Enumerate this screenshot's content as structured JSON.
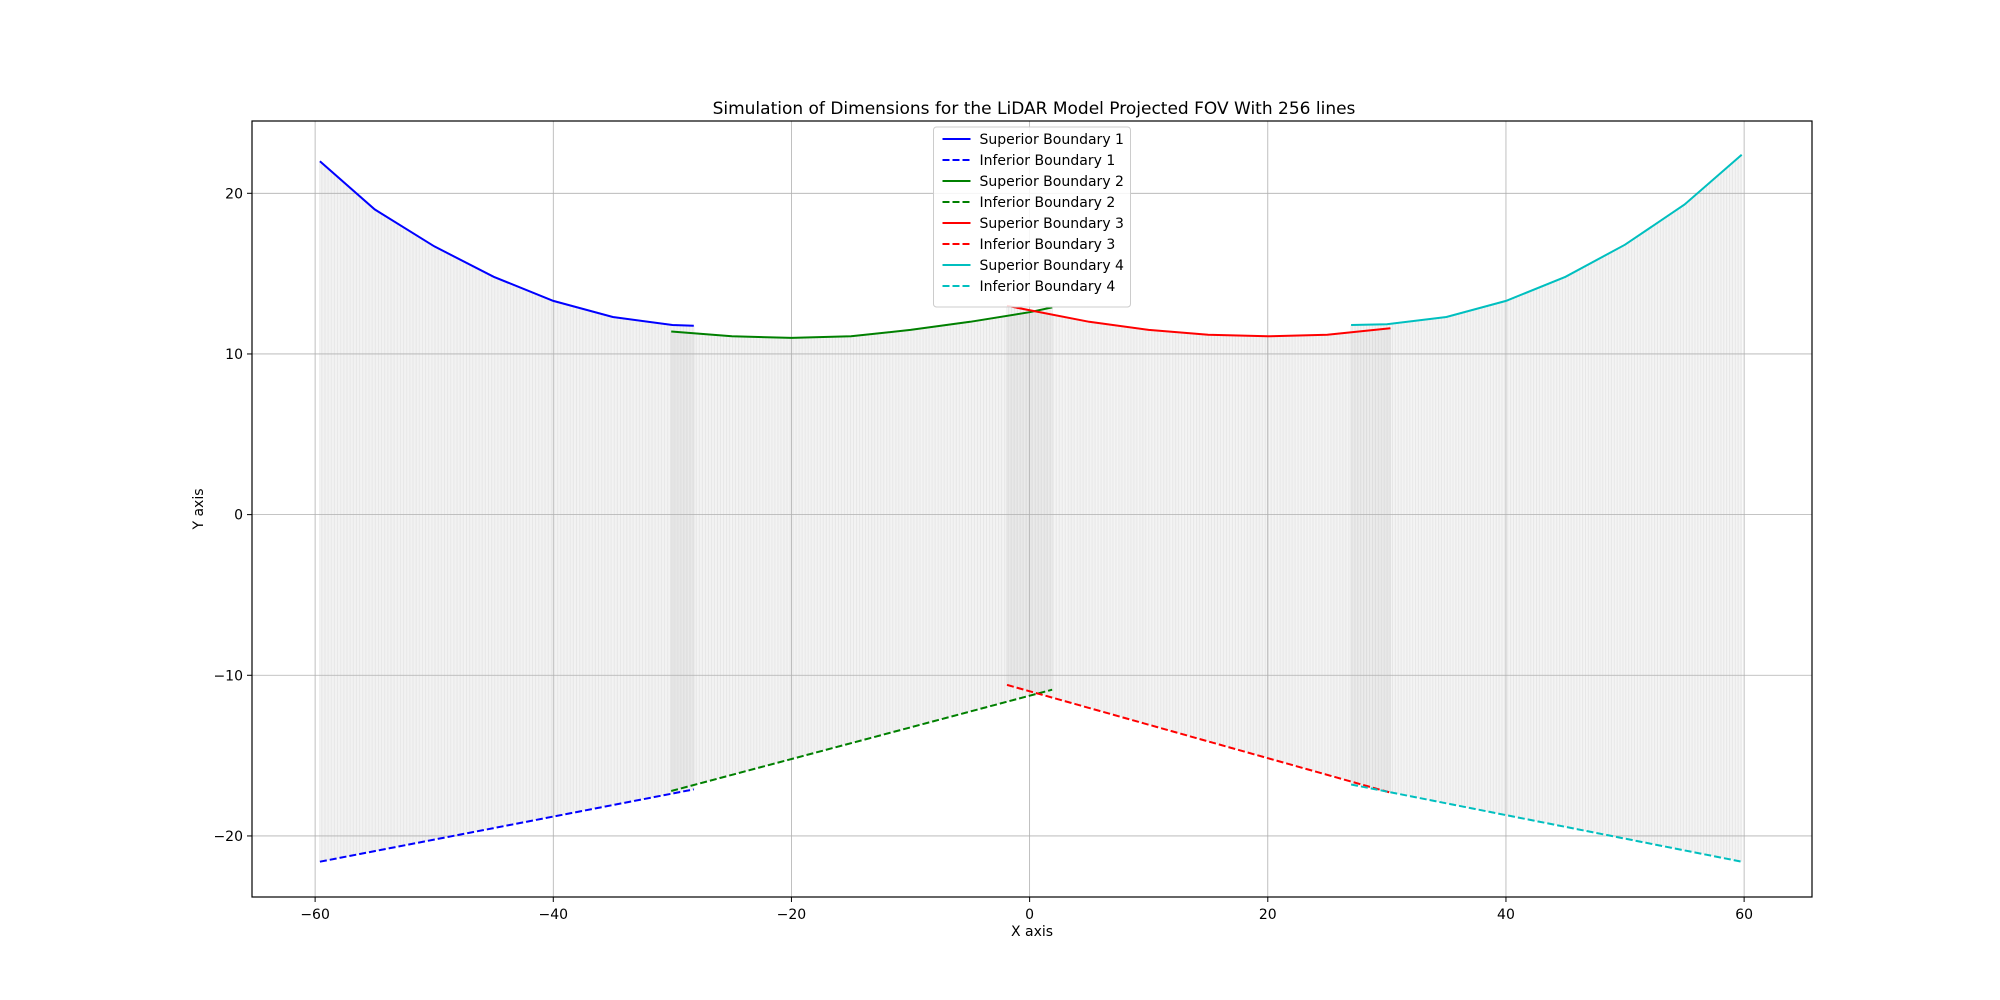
{
  "chart_data": {
    "type": "line",
    "title": "Simulation of Dimensions for the LiDAR Model Projected FOV With 256 lines",
    "xlabel": "X axis",
    "ylabel": "Y axis",
    "xlim": [
      -65.3,
      65.7
    ],
    "ylim": [
      -23.8,
      24.5
    ],
    "xticks": [
      -60,
      -40,
      -20,
      0,
      20,
      40,
      60
    ],
    "yticks": [
      -20,
      -10,
      0,
      10,
      20
    ],
    "xtick_labels": [
      "−60",
      "−40",
      "−20",
      "0",
      "20",
      "40",
      "60"
    ],
    "ytick_labels": [
      "−20",
      "−10",
      "0",
      "10",
      "20"
    ],
    "grid": true,
    "legend_position": "upper center",
    "fill_color": "#d3d3d3",
    "fill_lines": 256,
    "series": [
      {
        "name": "Superior Boundary 1",
        "color": "#0000ff",
        "style": "solid",
        "x": [
          -59.6,
          -55,
          -50,
          -45,
          -40,
          -35,
          -30,
          -28.2
        ],
        "y": [
          22.0,
          19.0,
          16.7,
          14.8,
          13.3,
          12.3,
          11.8,
          11.75
        ]
      },
      {
        "name": "Inferior Boundary 1",
        "color": "#0000ff",
        "style": "dashed",
        "x": [
          -59.6,
          -28.2
        ],
        "y": [
          -21.6,
          -17.1
        ]
      },
      {
        "name": "Superior Boundary 2",
        "color": "#008000",
        "style": "solid",
        "x": [
          -30.1,
          -25,
          -20,
          -15,
          -10,
          -5,
          0,
          1.9
        ],
        "y": [
          11.4,
          11.1,
          11.0,
          11.1,
          11.5,
          12.0,
          12.6,
          12.9
        ]
      },
      {
        "name": "Inferior Boundary 2",
        "color": "#008000",
        "style": "dashed",
        "x": [
          -30.1,
          1.9
        ],
        "y": [
          -17.2,
          -10.9
        ]
      },
      {
        "name": "Superior Boundary 3",
        "color": "#ff0000",
        "style": "solid",
        "x": [
          -1.9,
          5,
          10,
          15,
          20,
          25,
          30.3
        ],
        "y": [
          13.0,
          12.0,
          11.5,
          11.2,
          11.1,
          11.2,
          11.6
        ]
      },
      {
        "name": "Inferior Boundary 3",
        "color": "#ff0000",
        "style": "dashed",
        "x": [
          -1.9,
          30.3
        ],
        "y": [
          -10.6,
          -17.3
        ]
      },
      {
        "name": "Superior Boundary 4",
        "color": "#00bfbf",
        "style": "solid",
        "x": [
          27.0,
          30,
          35,
          40,
          45,
          50,
          55,
          59.8
        ],
        "y": [
          11.8,
          11.85,
          12.3,
          13.3,
          14.8,
          16.8,
          19.3,
          22.4
        ]
      },
      {
        "name": "Inferior Boundary 4",
        "color": "#00bfbf",
        "style": "dashed",
        "x": [
          27.0,
          59.8
        ],
        "y": [
          -16.8,
          -21.6
        ]
      }
    ]
  }
}
